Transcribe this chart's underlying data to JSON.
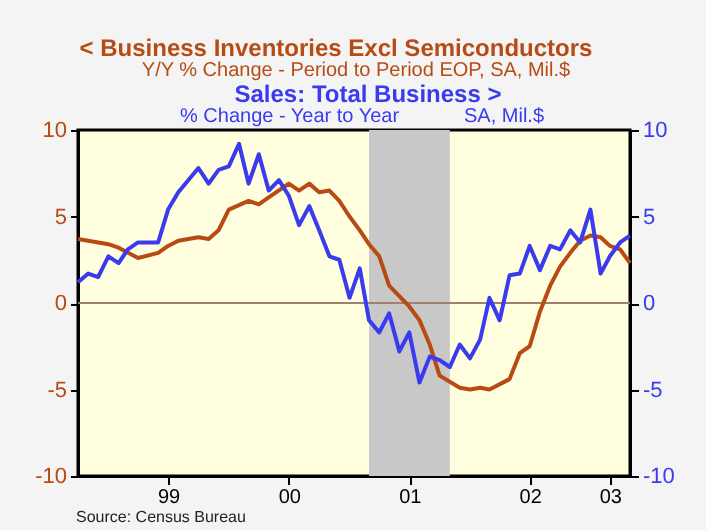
{
  "chart_data": {
    "type": "line",
    "annotations": [
      "Y/Y % Change - Period to Period  EOP, SA, Mil.$",
      "% Change - Year to Year",
      "SA, Mil.$",
      "Source:  Census Bureau"
    ],
    "series": [
      {
        "name": "< Business Inventories Excl Semiconductors",
        "color": "#b84a14",
        "x": [
          "1998-10",
          "1999-01",
          "1999-02",
          "1999-04",
          "1999-06",
          "1999-07",
          "1999-08",
          "1999-10",
          "1999-11",
          "1999-12",
          "2000-01",
          "2000-03",
          "2000-04",
          "2000-05",
          "2000-07",
          "2000-08",
          "2000-09",
          "2000-10",
          "2000-11",
          "2000-12",
          "2001-01",
          "2001-02",
          "2001-03",
          "2001-04",
          "2001-05",
          "2001-07",
          "2001-08",
          "2001-09",
          "2001-10",
          "2001-12",
          "2002-01",
          "2002-02",
          "2002-03",
          "2002-05",
          "2002-06",
          "2002-07",
          "2002-08",
          "2002-09",
          "2002-10",
          "2002-11",
          "2002-12",
          "2003-01",
          "2003-02",
          "2003-03",
          "2003-04",
          "2003-05"
        ],
        "values": [
          3.7,
          3.4,
          3.2,
          2.6,
          2.9,
          3.3,
          3.6,
          3.8,
          3.7,
          4.2,
          5.4,
          5.9,
          5.7,
          6.1,
          6.9,
          6.5,
          6.9,
          6.4,
          6.5,
          5.9,
          5.0,
          4.2,
          3.4,
          2.7,
          1.0,
          -0.2,
          -1.0,
          -2.4,
          -4.2,
          -4.9,
          -5.0,
          -4.9,
          -5.0,
          -4.4,
          -2.9,
          -2.5,
          -0.5,
          1.0,
          2.1,
          2.9,
          3.6,
          3.9,
          3.8,
          3.3,
          3.1,
          2.3
        ]
      },
      {
        "name": "Sales: Total Business  >",
        "color": "#3a3aee",
        "axis": "y2",
        "x": [
          "1998-10",
          "1998-11",
          "1998-12",
          "1999-01",
          "1999-02",
          "1999-03",
          "1999-04",
          "1999-06",
          "1999-07",
          "1999-08",
          "1999-10",
          "1999-11",
          "1999-12",
          "2000-01",
          "2000-02",
          "2000-03",
          "2000-04",
          "2000-05",
          "2000-06",
          "2000-07",
          "2000-08",
          "2000-09",
          "2000-10",
          "2000-11",
          "2000-12",
          "2001-01",
          "2001-02",
          "2001-03",
          "2001-04",
          "2001-05",
          "2001-06",
          "2001-07",
          "2001-08",
          "2001-09",
          "2001-10",
          "2001-11",
          "2001-12",
          "2002-01",
          "2002-02",
          "2002-03",
          "2002-04",
          "2002-05",
          "2002-06",
          "2002-07",
          "2002-08",
          "2002-09",
          "2002-10",
          "2002-11",
          "2002-12",
          "2003-01",
          "2003-02",
          "2003-03",
          "2003-04",
          "2003-05"
        ],
        "values": [
          1.2,
          1.7,
          1.5,
          2.7,
          2.3,
          3.1,
          3.5,
          3.5,
          5.4,
          6.4,
          7.8,
          6.9,
          7.7,
          7.9,
          9.2,
          6.9,
          8.6,
          6.5,
          7.1,
          6.2,
          4.5,
          5.6,
          4.2,
          2.7,
          2.5,
          0.3,
          2.0,
          -1.0,
          -1.7,
          -0.6,
          -2.8,
          -1.7,
          -4.6,
          -3.1,
          -3.3,
          -3.7,
          -2.4,
          -3.2,
          -2.1,
          0.3,
          -1.0,
          1.6,
          1.7,
          3.3,
          1.9,
          3.3,
          3.1,
          4.2,
          3.5,
          5.4,
          1.7,
          2.7,
          3.5,
          3.9
        ]
      }
    ],
    "xlim": [
      "1998-10",
      "2003-05"
    ],
    "xticks": [
      {
        "value": "1999-07",
        "label": "99"
      },
      {
        "value": "2000-07",
        "label": "00"
      },
      {
        "value": "2001-07",
        "label": "01"
      },
      {
        "value": "2002-07",
        "label": "02"
      },
      {
        "value": "2003-03",
        "label": "03"
      }
    ],
    "ylim": [
      -10,
      10
    ],
    "yticks": [
      -10,
      -5,
      0,
      5,
      10
    ],
    "y2lim": [
      -10,
      10
    ],
    "y2ticks": [
      -10,
      -5,
      0,
      5,
      10
    ],
    "ref_lines": [
      {
        "axis": "y",
        "value": 0,
        "color": "#a08070"
      }
    ],
    "bands": [
      {
        "axis": "x",
        "from": "2001-03",
        "to": "2001-11",
        "color": "#c8c8c8"
      }
    ],
    "grid": false
  }
}
